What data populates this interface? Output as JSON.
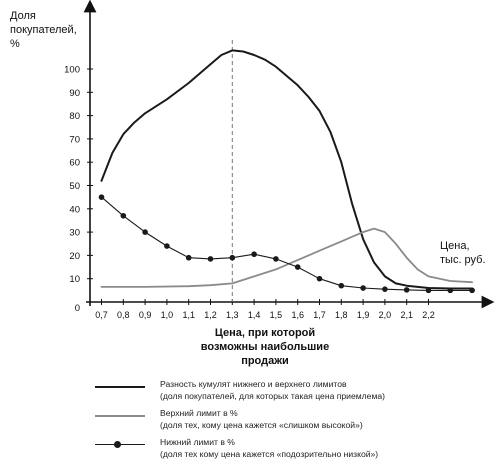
{
  "chart_data": {
    "type": "line",
    "ylabel_lines": [
      "Доля",
      "покупателей,",
      "%"
    ],
    "xlabel_lines": [
      "Цена,",
      "тыс. руб."
    ],
    "annotation_lines": [
      "Цена, при которой",
      "возможны наибольшие",
      "продажи"
    ],
    "annotation_x": 1.3,
    "x_ticks": [
      "0,7",
      "0,8",
      "0,9",
      "1,0",
      "1,1",
      "1,2",
      "1,3",
      "1,4",
      "1,5",
      "1,6",
      "1,7",
      "1,8",
      "1,9",
      "2,0",
      "2,1",
      "2,2"
    ],
    "y_ticks": [
      "0",
      "10",
      "20",
      "30",
      "40",
      "50",
      "60",
      "70",
      "80",
      "90",
      "100"
    ],
    "xlim": [
      0.6,
      2.5
    ],
    "ylim": [
      0,
      110
    ],
    "series": [
      {
        "name": "Разность кумулят нижнего и верхнего лимитов",
        "style": "solid-thick",
        "color": "#1a1a1a",
        "points": [
          [
            0.7,
            52
          ],
          [
            0.75,
            64
          ],
          [
            0.8,
            72
          ],
          [
            0.85,
            77
          ],
          [
            0.9,
            81
          ],
          [
            1.0,
            87
          ],
          [
            1.1,
            94
          ],
          [
            1.2,
            102
          ],
          [
            1.25,
            106
          ],
          [
            1.3,
            108
          ],
          [
            1.35,
            107.5
          ],
          [
            1.4,
            106
          ],
          [
            1.45,
            104
          ],
          [
            1.5,
            101
          ],
          [
            1.55,
            97
          ],
          [
            1.6,
            93
          ],
          [
            1.65,
            88
          ],
          [
            1.7,
            82
          ],
          [
            1.75,
            73
          ],
          [
            1.8,
            60
          ],
          [
            1.85,
            42
          ],
          [
            1.9,
            27
          ],
          [
            1.95,
            17
          ],
          [
            2.0,
            11
          ],
          [
            2.05,
            8
          ],
          [
            2.1,
            7
          ],
          [
            2.2,
            6
          ],
          [
            2.3,
            5.8
          ],
          [
            2.4,
            5.8
          ]
        ]
      },
      {
        "name": "Верхний лимит в %",
        "style": "solid-grey",
        "color": "#8a8a8a",
        "points": [
          [
            0.7,
            6.5
          ],
          [
            0.9,
            6.5
          ],
          [
            1.1,
            6.8
          ],
          [
            1.2,
            7.2
          ],
          [
            1.3,
            8
          ],
          [
            1.4,
            11
          ],
          [
            1.5,
            14
          ],
          [
            1.6,
            18
          ],
          [
            1.7,
            22
          ],
          [
            1.8,
            26
          ],
          [
            1.9,
            30
          ],
          [
            1.95,
            31.5
          ],
          [
            2.0,
            30
          ],
          [
            2.05,
            25
          ],
          [
            2.1,
            19
          ],
          [
            2.15,
            14
          ],
          [
            2.2,
            11
          ],
          [
            2.3,
            9
          ],
          [
            2.4,
            8.5
          ]
        ]
      },
      {
        "name": "Нижний лимит в %",
        "style": "dotted-markers",
        "color": "#1a1a1a",
        "points": [
          [
            0.7,
            45
          ],
          [
            0.8,
            37
          ],
          [
            0.9,
            30
          ],
          [
            1.0,
            24
          ],
          [
            1.1,
            19
          ],
          [
            1.2,
            18.5
          ],
          [
            1.3,
            19
          ],
          [
            1.4,
            20.5
          ],
          [
            1.5,
            18.5
          ],
          [
            1.6,
            15
          ],
          [
            1.7,
            10
          ],
          [
            1.8,
            7
          ],
          [
            1.9,
            6
          ],
          [
            2.0,
            5.5
          ],
          [
            2.1,
            5.2
          ],
          [
            2.2,
            5
          ],
          [
            2.3,
            5
          ],
          [
            2.4,
            5
          ]
        ]
      }
    ]
  },
  "legend": [
    {
      "line1": "Разность кумулят нижнего и верхнего лимитов",
      "line2": "(доля покупателей, для которых такая цена приемлема)"
    },
    {
      "line1": "Верхний лимит в %",
      "line2": "(доля тех, кому цена кажется «слишком высокой»)"
    },
    {
      "line1": "Нижний лимит в %",
      "line2": "(доля тех кому цена кажется «подозрительно низкой»)"
    }
  ]
}
